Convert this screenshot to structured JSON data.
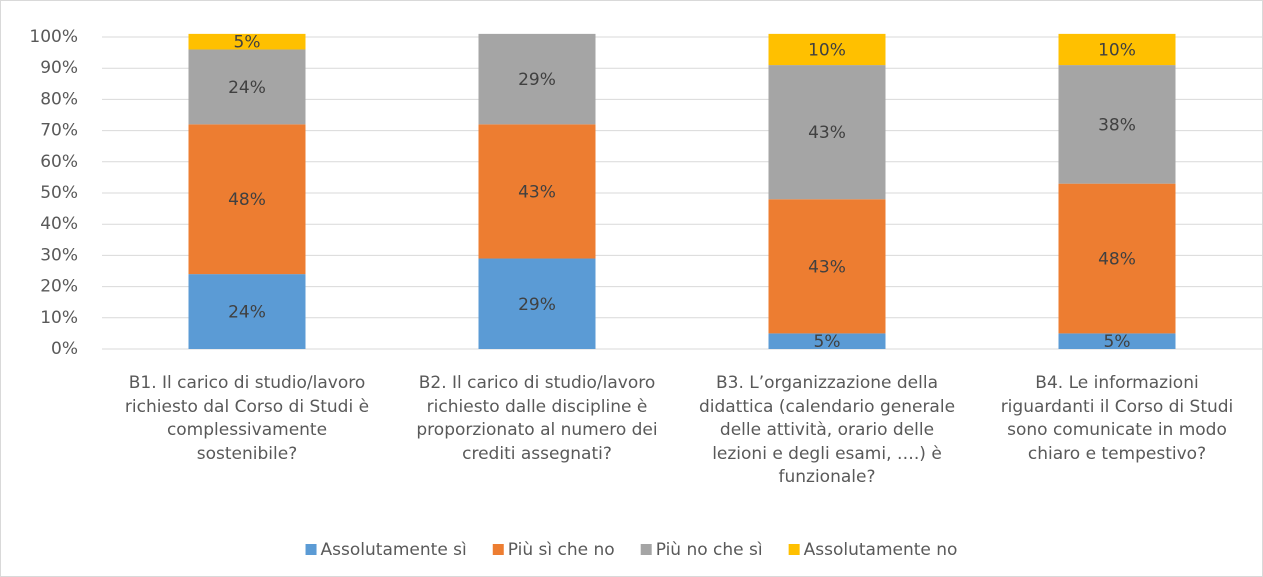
{
  "chart_data": {
    "type": "stacked_bar",
    "categories": [
      "B1. Il carico di studio/lavoro richiesto dal Corso di Studi è complessivamente sostenibile?",
      "B2. Il carico di studio/lavoro richiesto dalle discipline è proporzionato al numero dei crediti assegnati?",
      "B3. L’organizzazione della didattica (calendario generale delle attività, orario delle lezioni e degli esami, ….) è funzionale?",
      "B4. Le informazioni riguardanti il Corso di Studi sono comunicate in modo chiaro e tempestivo?"
    ],
    "series": [
      {
        "name": "Assolutamente sì",
        "color": "#5b9bd5",
        "values": [
          24,
          29,
          5,
          5
        ],
        "value_labels": [
          "24%",
          "29%",
          "5%",
          "5%"
        ]
      },
      {
        "name": "Più sì che no",
        "color": "#ed7d31",
        "values": [
          48,
          43,
          43,
          48
        ],
        "value_labels": [
          "48%",
          "43%",
          "43%",
          "48%"
        ]
      },
      {
        "name": "Più no che sì",
        "color": "#a5a5a5",
        "values": [
          24,
          29,
          43,
          38
        ],
        "value_labels": [
          "24%",
          "29%",
          "43%",
          "38%"
        ]
      },
      {
        "name": "Assolutamente no",
        "color": "#ffc000",
        "values": [
          5,
          null,
          10,
          10
        ],
        "value_labels": [
          "5%",
          null,
          "10%",
          "10%"
        ]
      }
    ],
    "ylim": [
      0,
      100
    ],
    "yticks": [
      {
        "value": 0,
        "label": "0%"
      },
      {
        "value": 10,
        "label": "10%"
      },
      {
        "value": 20,
        "label": "20%"
      },
      {
        "value": 30,
        "label": "30%"
      },
      {
        "value": 40,
        "label": "40%"
      },
      {
        "value": 50,
        "label": "50%"
      },
      {
        "value": 60,
        "label": "60%"
      },
      {
        "value": 70,
        "label": "70%"
      },
      {
        "value": 80,
        "label": "80%"
      },
      {
        "value": 90,
        "label": "90%"
      },
      {
        "value": 100,
        "label": "100%"
      }
    ],
    "grid": true,
    "legend": "bottom"
  }
}
